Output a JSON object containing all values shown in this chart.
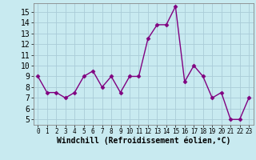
{
  "x": [
    0,
    1,
    2,
    3,
    4,
    5,
    6,
    7,
    8,
    9,
    10,
    11,
    12,
    13,
    14,
    15,
    16,
    17,
    18,
    19,
    20,
    21,
    22,
    23
  ],
  "y": [
    9,
    7.5,
    7.5,
    7,
    7.5,
    9,
    9.5,
    8,
    9,
    7.5,
    9,
    9,
    12.5,
    13.8,
    13.8,
    15.5,
    8.5,
    10,
    9,
    7,
    7.5,
    5,
    5,
    7
  ],
  "line_color": "#800080",
  "marker": "D",
  "marker_size": 2.5,
  "bg_color": "#c8eaf0",
  "grid_color": "#aaccd8",
  "xlabel": "Windchill (Refroidissement éolien,°C)",
  "xlabel_fontsize": 7,
  "ylim": [
    4.5,
    15.8
  ],
  "xlim": [
    -0.5,
    23.5
  ],
  "yticks": [
    5,
    6,
    7,
    8,
    9,
    10,
    11,
    12,
    13,
    14,
    15
  ],
  "xticks": [
    0,
    1,
    2,
    3,
    4,
    5,
    6,
    7,
    8,
    9,
    10,
    11,
    12,
    13,
    14,
    15,
    16,
    17,
    18,
    19,
    20,
    21,
    22,
    23
  ],
  "ytick_fontsize": 7,
  "xtick_fontsize": 5.5,
  "line_width": 1.0
}
